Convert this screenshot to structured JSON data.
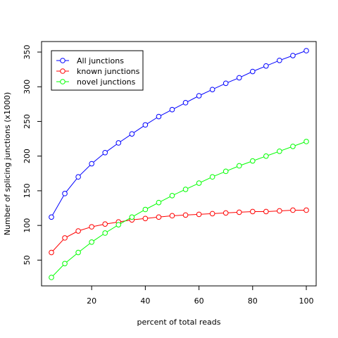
{
  "chart_data": {
    "type": "line",
    "title": "",
    "xlabel": "percent of total reads",
    "ylabel": "Number of splicing junctions (x1000)",
    "xlim": [
      5,
      100
    ],
    "ylim": [
      25,
      352
    ],
    "x_ticks": [
      20,
      40,
      60,
      80,
      100
    ],
    "y_ticks": [
      50,
      100,
      150,
      200,
      250,
      300,
      350
    ],
    "grid": false,
    "legend_position": "top-left",
    "x": [
      5,
      10,
      15,
      20,
      25,
      30,
      35,
      40,
      45,
      50,
      55,
      60,
      65,
      70,
      75,
      80,
      85,
      90,
      95,
      100
    ],
    "series": [
      {
        "name": "All junctions",
        "color": "#0000ff",
        "values": [
          112,
          146,
          170,
          189,
          205,
          219,
          232,
          245,
          257,
          267,
          277,
          287,
          296,
          305,
          313,
          322,
          330,
          338,
          345,
          352
        ]
      },
      {
        "name": "known junctions",
        "color": "#ff0000",
        "values": [
          61,
          82,
          92,
          98,
          102,
          105,
          108,
          110,
          112,
          114,
          115,
          116,
          117,
          118,
          119,
          120,
          120,
          121,
          122,
          122
        ]
      },
      {
        "name": "novel junctions",
        "color": "#00ff00",
        "values": [
          25,
          45,
          61,
          76,
          89,
          101,
          112,
          123,
          133,
          143,
          152,
          161,
          170,
          178,
          186,
          193,
          200,
          207,
          214,
          221
        ]
      }
    ]
  }
}
